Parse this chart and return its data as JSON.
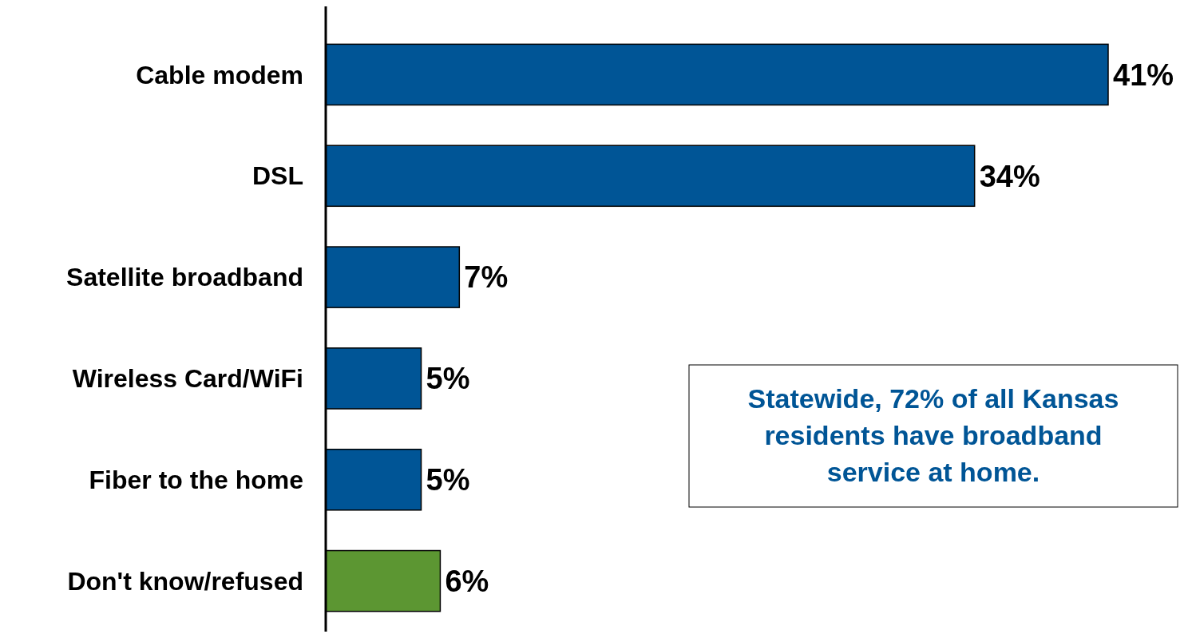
{
  "chart_data": {
    "type": "bar",
    "orientation": "horizontal",
    "categories": [
      "Cable modem",
      "DSL",
      "Satellite broadband",
      "Wireless Card/WiFi",
      "Fiber to the home",
      "Don't know/refused"
    ],
    "values": [
      41,
      34,
      7,
      5,
      5,
      6
    ],
    "colors": [
      "#005596",
      "#005596",
      "#005596",
      "#005596",
      "#005596",
      "#5c9632"
    ],
    "value_labels": [
      "41%",
      "34%",
      "7%",
      "5%",
      "5%",
      "6%"
    ],
    "annotations": [
      "Statewide, 72% of all Kansas residents have broadband service at home."
    ]
  }
}
